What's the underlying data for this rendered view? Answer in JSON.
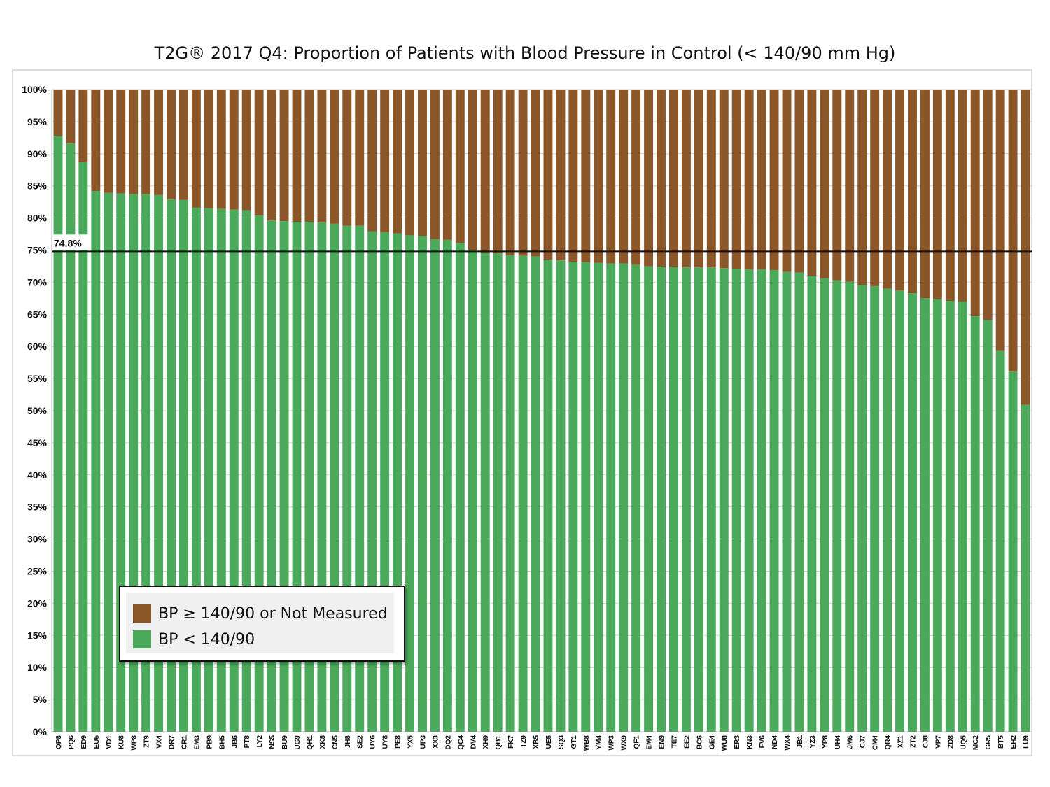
{
  "chart_data": {
    "type": "bar",
    "stacked": true,
    "title": "T2G® 2017 Q4: Proportion of Patients with Blood Pressure in Control (< 140/90 mm Hg)",
    "xlabel": "",
    "ylabel": "",
    "ylim": [
      0,
      100
    ],
    "ytick_labels": [
      "0%",
      "5%",
      "10%",
      "15%",
      "20%",
      "25%",
      "30%",
      "35%",
      "40%",
      "45%",
      "50%",
      "55%",
      "60%",
      "65%",
      "70%",
      "75%",
      "80%",
      "85%",
      "90%",
      "95%",
      "100%"
    ],
    "grid": true,
    "legend_position": "bottom-left",
    "reference_line": {
      "value": 74.8,
      "label": "74.8%"
    },
    "categories": [
      "QP8",
      "PQ6",
      "ED9",
      "EU5",
      "VD1",
      "KU8",
      "WP8",
      "ZT9",
      "VX4",
      "DR7",
      "CR1",
      "EM3",
      "PB9",
      "BH5",
      "JB6",
      "PT8",
      "LY2",
      "NS5",
      "BU9",
      "UG9",
      "QH1",
      "XK8",
      "CN5",
      "JH8",
      "SE2",
      "UY6",
      "UY8",
      "PE8",
      "YX5",
      "UP3",
      "XX3",
      "DQ2",
      "QC4",
      "DV4",
      "XH9",
      "QB1",
      "FK7",
      "TZ9",
      "XB5",
      "UE5",
      "SQ3",
      "GT1",
      "WB8",
      "YM4",
      "WP3",
      "WX9",
      "QF1",
      "EM4",
      "EN9",
      "TE7",
      "EE2",
      "BC6",
      "GE4",
      "WU8",
      "ER3",
      "KN3",
      "FV6",
      "ND4",
      "WX4",
      "JB1",
      "YZ3",
      "YP8",
      "UH4",
      "JM6",
      "CJ7",
      "CM4",
      "QR4",
      "XZ1",
      "ZT2",
      "CJ8",
      "VP7",
      "ZD8",
      "UQ5",
      "MC2",
      "GR5",
      "BT5",
      "EH2",
      "LU9"
    ],
    "series": [
      {
        "name": "BP < 140/90",
        "color": "#4aa95a",
        "values": [
          92.8,
          91.6,
          88.7,
          84.2,
          83.9,
          83.8,
          83.7,
          83.7,
          83.6,
          82.9,
          82.8,
          81.6,
          81.5,
          81.4,
          81.3,
          81.2,
          80.4,
          79.6,
          79.5,
          79.4,
          79.4,
          79.3,
          79.1,
          78.8,
          78.8,
          77.9,
          77.8,
          77.6,
          77.3,
          77.2,
          76.7,
          76.6,
          76.1,
          75.0,
          74.6,
          74.5,
          74.2,
          74.1,
          74.0,
          73.5,
          73.4,
          73.2,
          73.1,
          73.0,
          72.9,
          72.9,
          72.7,
          72.5,
          72.4,
          72.4,
          72.3,
          72.3,
          72.3,
          72.2,
          72.1,
          72.0,
          72.0,
          71.9,
          71.6,
          71.5,
          71.0,
          70.6,
          70.3,
          70.1,
          69.6,
          69.4,
          69.0,
          68.7,
          68.3,
          67.5,
          67.4,
          67.1,
          67.0,
          64.7,
          64.1,
          59.3,
          56.1,
          50.9
        ]
      },
      {
        "name": "BP ≥ 140/90 or Not Measured",
        "color": "#8b5628",
        "values": [
          7.2,
          8.4,
          11.3,
          15.8,
          16.1,
          16.2,
          16.3,
          16.3,
          16.4,
          17.1,
          17.2,
          18.4,
          18.5,
          18.6,
          18.7,
          18.8,
          19.6,
          20.4,
          20.5,
          20.6,
          20.6,
          20.7,
          20.9,
          21.2,
          21.2,
          22.1,
          22.2,
          22.4,
          22.7,
          22.8,
          23.3,
          23.4,
          23.9,
          25.0,
          25.4,
          25.5,
          25.8,
          25.9,
          26.0,
          26.5,
          26.6,
          26.8,
          26.9,
          27.0,
          27.1,
          27.1,
          27.3,
          27.5,
          27.6,
          27.6,
          27.7,
          27.7,
          27.7,
          27.8,
          27.9,
          28.0,
          28.0,
          28.1,
          28.4,
          28.5,
          29.0,
          29.4,
          29.7,
          29.9,
          30.4,
          30.6,
          31.0,
          31.3,
          31.7,
          32.5,
          32.6,
          32.9,
          33.0,
          35.3,
          35.9,
          40.7,
          43.9,
          49.1
        ]
      }
    ]
  },
  "legend": {
    "items": [
      {
        "label": "BP ≥ 140/90 or Not Measured",
        "color": "#8b5628"
      },
      {
        "label": "BP < 140/90",
        "color": "#4aa95a"
      }
    ]
  }
}
